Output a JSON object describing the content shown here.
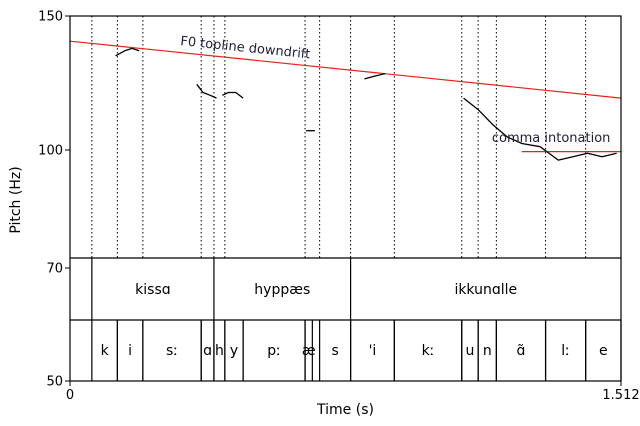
{
  "chart_data": {
    "type": "line",
    "title": "",
    "xlabel": "Time (s)",
    "ylabel": "Pitch (Hz)",
    "xlim": [
      0,
      1.512
    ],
    "ylim": [
      50,
      150
    ],
    "x_ticks": [
      "0",
      "1.512"
    ],
    "y_ticks": [
      {
        "value": 150,
        "label": "150"
      },
      {
        "value": 100,
        "label": "100"
      },
      {
        "value": 70,
        "label": "70"
      },
      {
        "value": 50,
        "label": "50"
      }
    ],
    "pitch_segments": [
      {
        "x": [
          0.125,
          0.15,
          0.17,
          0.19
        ],
        "y": [
          133,
          135,
          136,
          135
        ]
      },
      {
        "x": [
          0.348,
          0.365,
          0.385,
          0.402
        ],
        "y": [
          122,
          119,
          118,
          117
        ]
      },
      {
        "x": [
          0.418,
          0.435,
          0.455,
          0.475
        ],
        "y": [
          118,
          119,
          119,
          117
        ]
      },
      {
        "x": [
          0.648,
          0.672
        ],
        "y": [
          106,
          106
        ]
      },
      {
        "x": [
          0.808,
          0.835,
          0.865
        ],
        "y": [
          124,
          125,
          126
        ]
      },
      {
        "x": [
          1.08,
          1.12,
          1.16,
          1.2,
          1.24,
          1.29,
          1.34,
          1.38,
          1.42,
          1.46,
          1.5
        ],
        "y": [
          117,
          113,
          108,
          104,
          102,
          101,
          97,
          98,
          99,
          98,
          99
        ]
      }
    ],
    "reference_lines": [
      {
        "label": "F0 topline downdrift",
        "x": [
          0,
          1.512
        ],
        "y": [
          139,
          117
        ],
        "color": "#e8201a"
      },
      {
        "label": "comma intonation",
        "x": [
          1.24,
          1.512
        ],
        "y": [
          99.5,
          99.5
        ],
        "color": "#e8201a"
      }
    ],
    "boundaries": [
      0.06,
      0.13,
      0.2,
      0.36,
      0.395,
      0.425,
      0.645,
      0.685,
      0.77,
      0.89,
      1.075,
      1.12,
      1.17,
      1.305,
      1.415
    ],
    "tiers": {
      "words": [
        {
          "label": "kissɑ",
          "start": 0.06,
          "end": 0.395
        },
        {
          "label": "hyppæs",
          "start": 0.395,
          "end": 0.77
        },
        {
          "label": "ikkunɑlle",
          "start": 0.77,
          "end": 1.512
        }
      ],
      "segments": [
        {
          "label": "k",
          "start": 0.06,
          "end": 0.13
        },
        {
          "label": "i",
          "start": 0.13,
          "end": 0.2
        },
        {
          "label": "sː",
          "start": 0.2,
          "end": 0.36
        },
        {
          "label": "ɑ",
          "start": 0.36,
          "end": 0.395
        },
        {
          "label": "h",
          "start": 0.395,
          "end": 0.425
        },
        {
          "label": "y",
          "start": 0.425,
          "end": 0.475
        },
        {
          "label": "pː",
          "start": 0.475,
          "end": 0.645
        },
        {
          "label": "æ",
          "start": 0.645,
          "end": 0.665
        },
        {
          "label": "s",
          "start": 0.685,
          "end": 0.77
        },
        {
          "label": "'i",
          "start": 0.77,
          "end": 0.89
        },
        {
          "label": "kː",
          "start": 0.89,
          "end": 1.075
        },
        {
          "label": "u",
          "start": 1.075,
          "end": 1.12
        },
        {
          "label": "n",
          "start": 1.12,
          "end": 1.17
        },
        {
          "label": "ɑ̃",
          "start": 1.17,
          "end": 1.305
        },
        {
          "label": "lː",
          "start": 1.305,
          "end": 1.415
        },
        {
          "label": "e",
          "start": 1.415,
          "end": 1.512
        }
      ]
    },
    "colors": {
      "pitch": "#000000",
      "reference": "#e8201a",
      "boundary": "#000000"
    }
  }
}
